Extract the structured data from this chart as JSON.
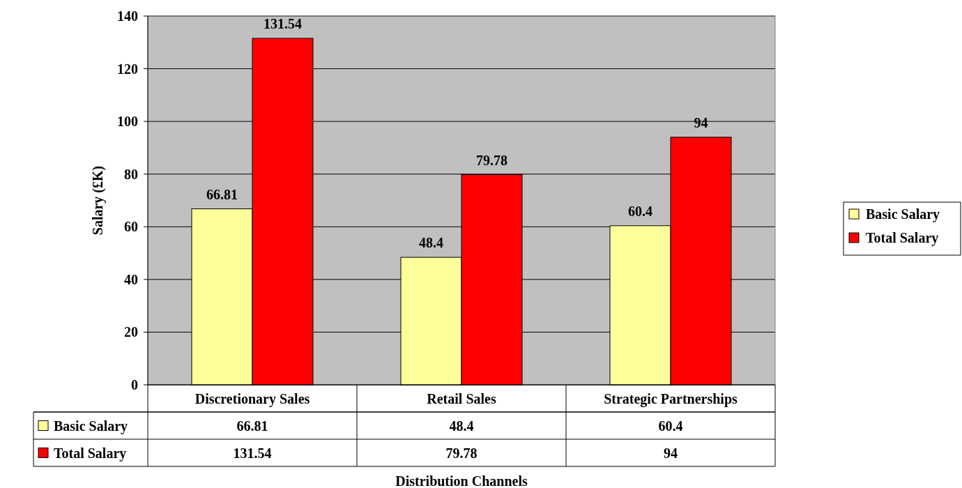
{
  "chart_data": {
    "type": "bar",
    "xlabel": "Distribution Channels",
    "ylabel": "Salary (£K)",
    "categories": [
      "Discretionary Sales",
      "Retail Sales",
      "Strategic Partnerships"
    ],
    "series": [
      {
        "name": "Basic Salary",
        "color": "#ffff99",
        "values": [
          66.81,
          48.4,
          60.4
        ],
        "value_labels": [
          "66.81",
          "48.4",
          "60.4"
        ]
      },
      {
        "name": "Total Salary",
        "color": "#ff0000",
        "values": [
          131.54,
          79.78,
          94
        ],
        "value_labels": [
          "131.54",
          "79.78",
          "94"
        ]
      }
    ],
    "ylim": [
      0,
      140
    ],
    "yticks": [
      0,
      20,
      40,
      60,
      80,
      100,
      120,
      140
    ],
    "grid": "y",
    "legend": "right",
    "annotations": [
      {
        "text": "66.81",
        "x": "Discretionary Sales",
        "y": 66.81
      },
      {
        "text": "131.54",
        "x": "Discretionary Sales",
        "y": 131.54
      },
      {
        "text": "48.4",
        "x": "Retail Sales",
        "y": 48.4
      },
      {
        "text": "79.78",
        "x": "Retail Sales",
        "y": 79.78
      },
      {
        "text": "60.4",
        "x": "Strategic Partnerships",
        "y": 60.4
      },
      {
        "text": "94",
        "x": "Strategic Partnerships",
        "y": 94
      }
    ]
  }
}
